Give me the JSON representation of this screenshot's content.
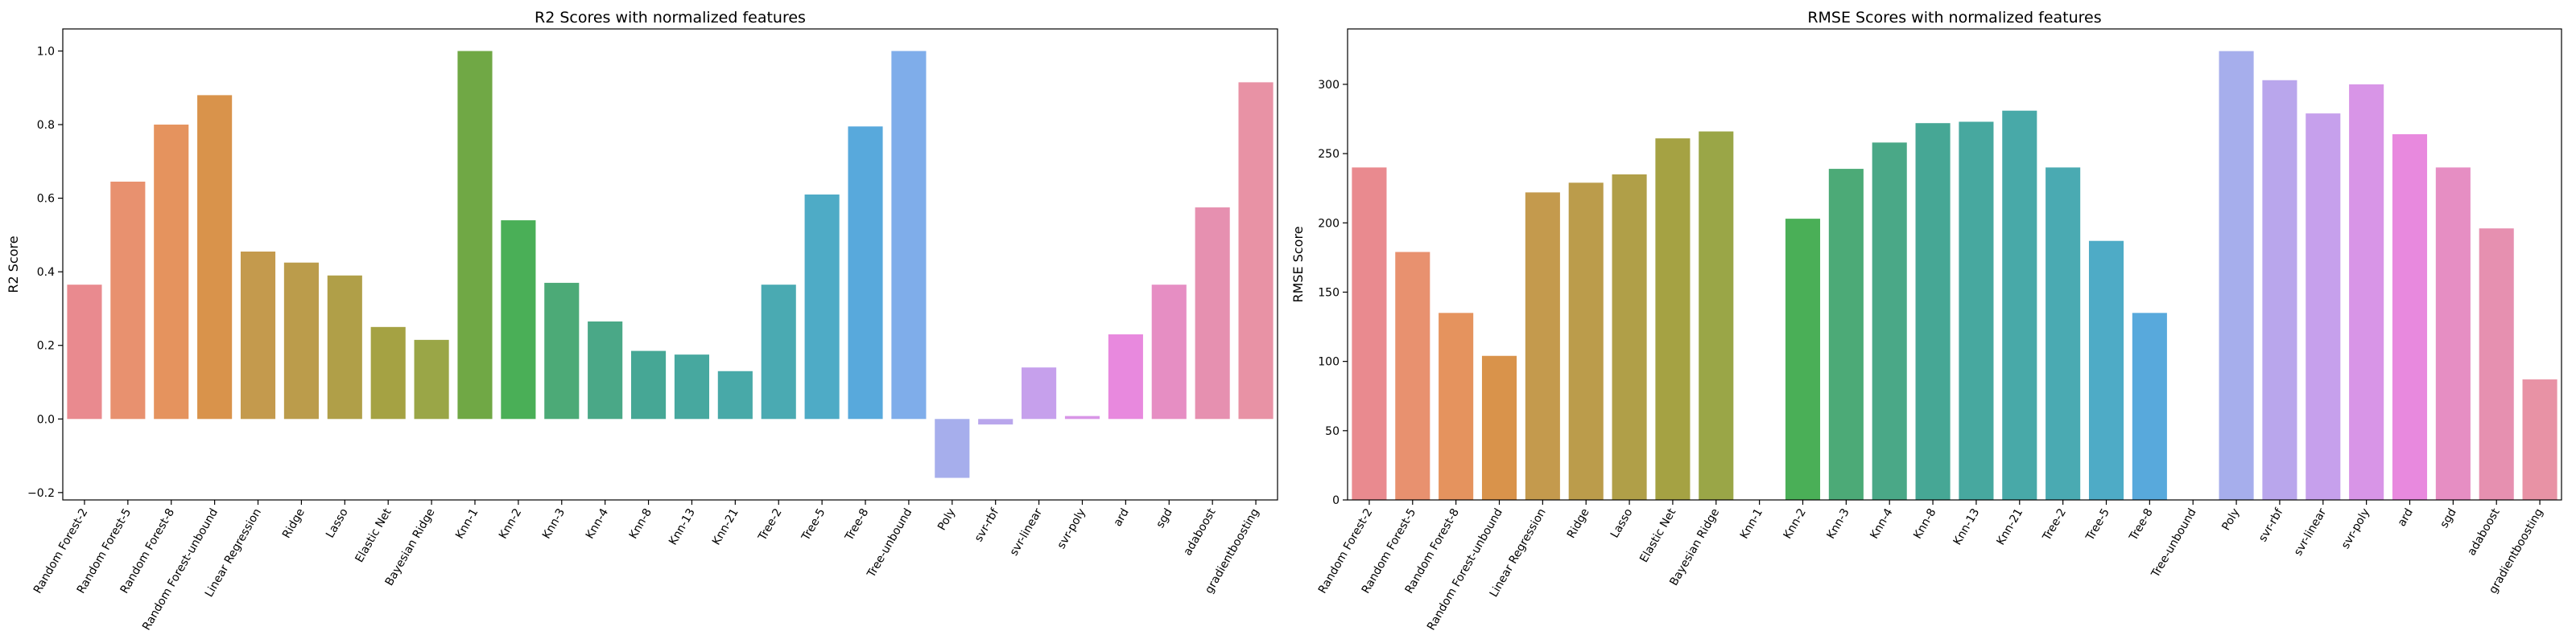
{
  "chart_data": [
    {
      "type": "bar",
      "title": "R2 Scores with normalized features",
      "xlabel": "",
      "ylabel": "R2 Score",
      "ylim": [
        -0.22,
        1.06
      ],
      "yticks": [
        -0.2,
        0.0,
        0.2,
        0.4,
        0.6,
        0.8,
        1.0
      ],
      "ytick_labels": [
        "−0.2",
        "0.0",
        "0.2",
        "0.4",
        "0.6",
        "0.8",
        "1.0"
      ],
      "grid": false,
      "categories": [
        "Random Forest-2",
        "Random Forest-5",
        "Random Forest-8",
        "Random Forest-unbound",
        "Linear Regression",
        "Ridge",
        "Lasso",
        "Elastic Net",
        "Bayesian Ridge",
        "Knn-1",
        "Knn-2",
        "Knn-3",
        "Knn-4",
        "Knn-8",
        "Knn-13",
        "Knn-21",
        "Tree-2",
        "Tree-5",
        "Tree-8",
        "Tree-unbound",
        "Poly",
        "svr-rbf",
        "svr-linear",
        "svr-poly",
        "ard",
        "sgd",
        "adaboost",
        "gradientboosting"
      ],
      "values": [
        0.365,
        0.645,
        0.8,
        0.88,
        0.455,
        0.425,
        0.39,
        0.25,
        0.215,
        1.0,
        0.54,
        0.37,
        0.265,
        0.185,
        0.175,
        0.13,
        0.365,
        0.61,
        0.795,
        1.0,
        -0.16,
        -0.015,
        0.14,
        0.008,
        0.23,
        0.365,
        0.575,
        0.915
      ]
    },
    {
      "type": "bar",
      "title": "RMSE Scores with normalized features",
      "xlabel": "",
      "ylabel": "RMSE Score",
      "ylim": [
        0,
        340
      ],
      "yticks": [
        0,
        50,
        100,
        150,
        200,
        250,
        300
      ],
      "ytick_labels": [
        "0",
        "50",
        "100",
        "150",
        "200",
        "250",
        "300"
      ],
      "grid": false,
      "categories": [
        "Random Forest-2",
        "Random Forest-5",
        "Random Forest-8",
        "Random Forest-unbound",
        "Linear Regression",
        "Ridge",
        "Lasso",
        "Elastic Net",
        "Bayesian Ridge",
        "Knn-1",
        "Knn-2",
        "Knn-3",
        "Knn-4",
        "Knn-8",
        "Knn-13",
        "Knn-21",
        "Tree-2",
        "Tree-5",
        "Tree-8",
        "Tree-unbound",
        "Poly",
        "svr-rbf",
        "svr-linear",
        "svr-poly",
        "ard",
        "sgd",
        "adaboost",
        "gradientboosting"
      ],
      "values": [
        240,
        179,
        135,
        104,
        222,
        229,
        235,
        261,
        266,
        0,
        203,
        239,
        258,
        272,
        273,
        281,
        240,
        187,
        135,
        0,
        324,
        303,
        279,
        300,
        264,
        240,
        196,
        87
      ]
    }
  ],
  "palette": [
    "#e98a8f",
    "#e8916f",
    "#e5935e",
    "#d9934b",
    "#c49a4d",
    "#bb9c4b",
    "#b09f48",
    "#a5a243",
    "#9aa647",
    "#70a845",
    "#4aaf57",
    "#4caa77",
    "#4aa887",
    "#46a795",
    "#47a89f",
    "#48a9a8",
    "#4aaab2",
    "#4eabc6",
    "#58a9dc",
    "#7fadea",
    "#a6aeec",
    "#b9a6ec",
    "#c6a0ec",
    "#d895e7",
    "#e889de",
    "#e68ec3",
    "#e690b0",
    "#e892a5"
  ]
}
